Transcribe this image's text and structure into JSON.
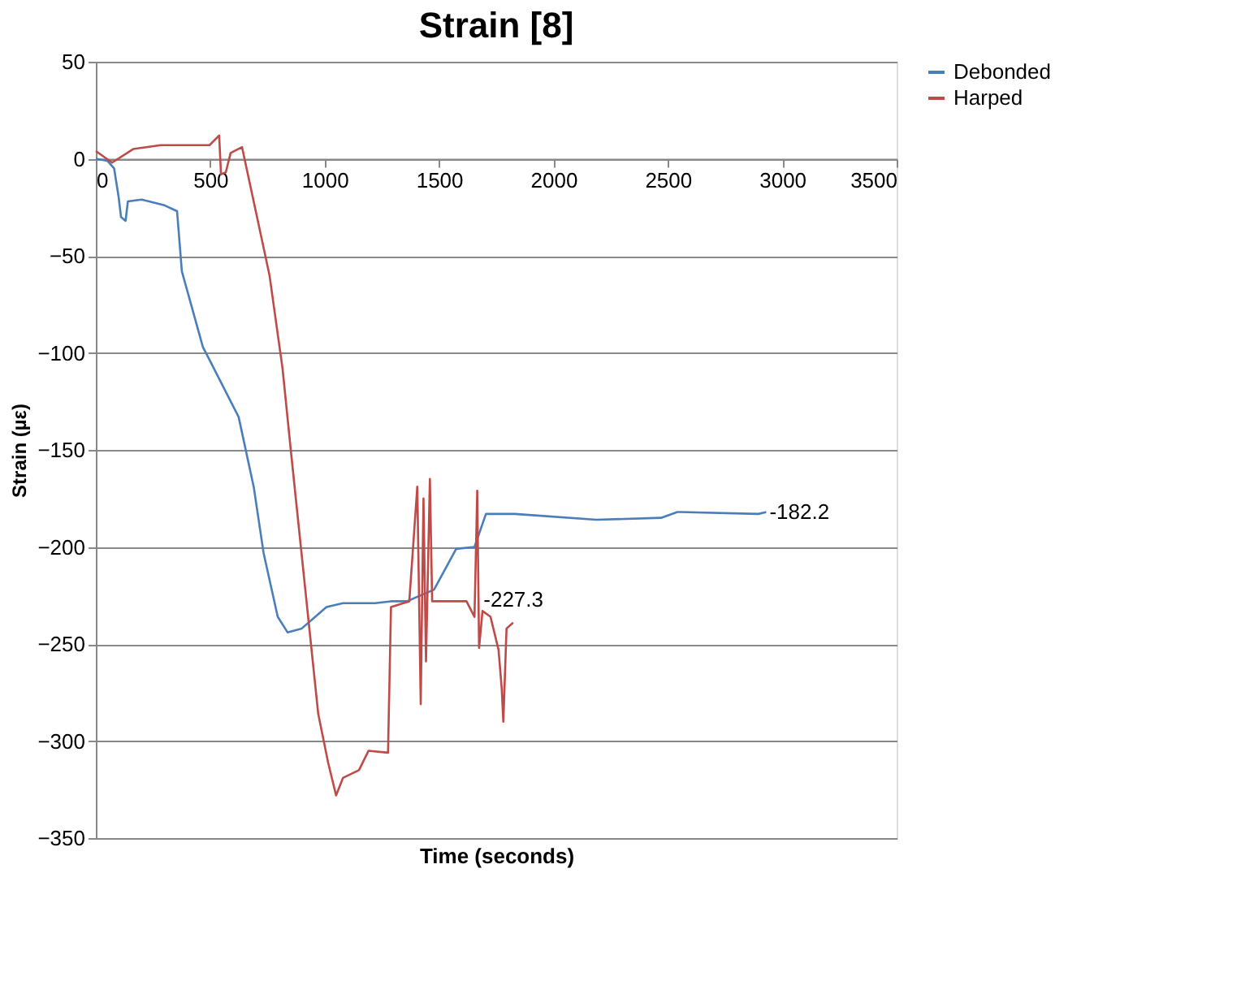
{
  "chart_data": {
    "type": "line",
    "title": "Strain [8]",
    "xlabel": "Time (seconds)",
    "ylabel": "Strain (µε)",
    "xlim": [
      0,
      3500
    ],
    "xticks": [
      0,
      500,
      1000,
      1500,
      2000,
      2500,
      3000,
      3500
    ],
    "ylim": [
      -350,
      50
    ],
    "yticks": [
      -350,
      -300,
      -250,
      -200,
      -150,
      -100,
      -50,
      0,
      50
    ],
    "grid": "y",
    "legend": "right",
    "marker": "none",
    "line_style": "solid",
    "series": [
      {
        "name": "Debonded",
        "color": "#4a7ebb",
        "x": [
          0,
          50,
          80,
          100,
          110,
          130,
          140,
          200,
          300,
          355,
          376,
          468,
          624,
          690,
          733,
          795,
          838,
          900,
          1008,
          1080,
          1220,
          1290,
          1360,
          1478,
          1575,
          1655,
          1705,
          1717,
          1832,
          2187,
          2470,
          2542,
          2555,
          2896,
          2930
        ],
        "values": [
          0,
          -1,
          -5,
          -20,
          -30,
          -32,
          -22,
          -21,
          -24,
          -27,
          -58,
          -97,
          -133,
          -169,
          -203,
          -236,
          -244,
          -242,
          -231,
          -229,
          -229,
          -228,
          -228,
          -222,
          -201,
          -200,
          -183,
          -183,
          -183,
          -186,
          -185,
          -182,
          -182,
          -183,
          -182
        ]
      },
      {
        "name": "Harped",
        "color": "#be4b48",
        "x": [
          0,
          71,
          163,
          284,
          497,
          539,
          547,
          568,
          589,
          639,
          759,
          816,
          852,
          972,
          1015,
          1050,
          1080,
          1150,
          1192,
          1277,
          1290,
          1370,
          1405,
          1420,
          1432,
          1443,
          1460,
          1470,
          1620,
          1655,
          1667,
          1675,
          1690,
          1725,
          1760,
          1774,
          1781,
          1795,
          1824
        ],
        "values": [
          4,
          -2,
          5,
          7,
          7,
          12,
          -8,
          -7,
          3,
          6,
          -60,
          -108,
          -150,
          -286,
          -311,
          -328,
          -319,
          -315,
          -305,
          -306,
          -231,
          -228,
          -169,
          -281,
          -175,
          -259,
          -165,
          -228,
          -228,
          -236,
          -171,
          -252,
          -233,
          -236,
          -253,
          -273,
          -290,
          -242,
          -239
        ]
      }
    ],
    "annotations": [
      {
        "text": "-227.3",
        "x": 1680,
        "y": -227.3
      },
      {
        "text": "-182.2",
        "x": 2930,
        "y": -182.2
      }
    ]
  }
}
